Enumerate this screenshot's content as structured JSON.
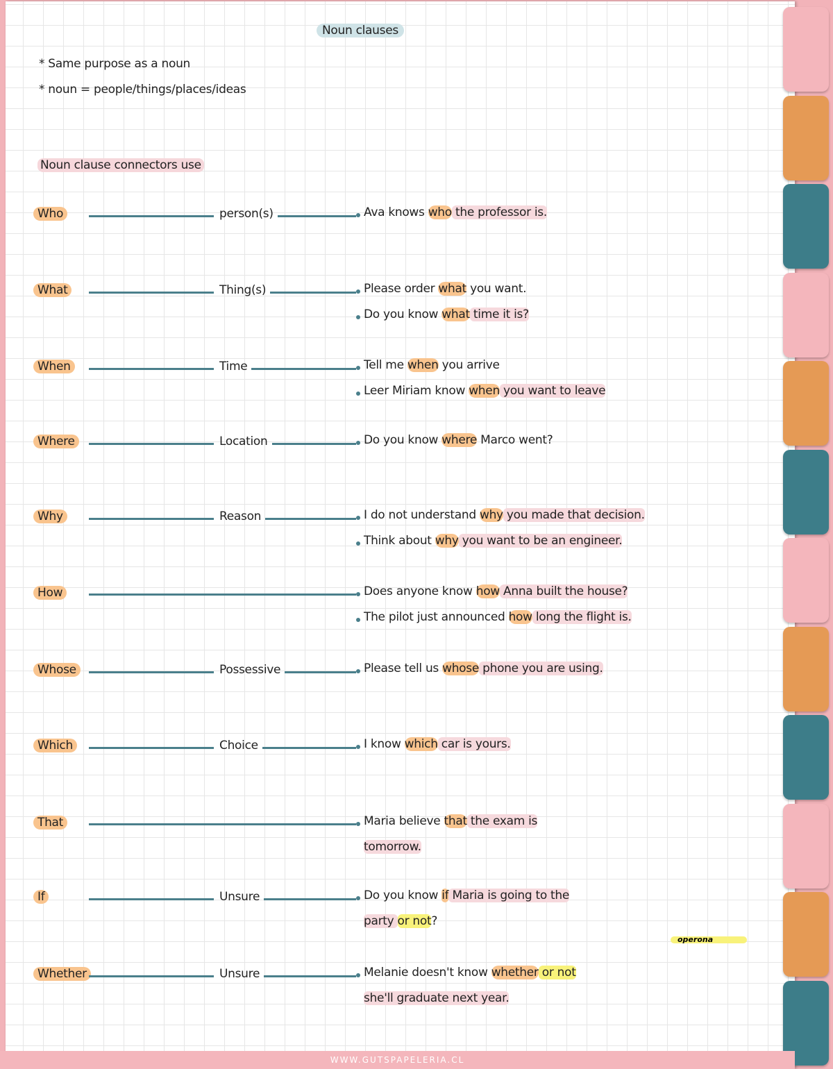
{
  "title": "Noun clauses",
  "bullets": [
    "* Same purpose as a noun",
    "* noun = people/things/places/ideas"
  ],
  "subheading": "Noun clause connectors use",
  "colors": {
    "pink": "#f4b6bc",
    "orange": "#e59a55",
    "teal": "#3d7d89",
    "line": "#4a7f8b",
    "highlight_orange": "#f9c48e",
    "highlight_pink": "#f6d9dd",
    "highlight_yellow": "#f8f27a"
  },
  "tabs": [
    "pink",
    "orange",
    "teal",
    "pink",
    "orange",
    "teal",
    "pink",
    "orange",
    "teal",
    "pink",
    "orange",
    "teal"
  ],
  "rows": [
    {
      "word": "Who",
      "meaning": "person(s)",
      "examples": [
        [
          [
            "Ava knows ",
            "n"
          ],
          [
            "who",
            "o"
          ],
          [
            " the professor is.",
            "p"
          ]
        ]
      ]
    },
    {
      "word": "What",
      "meaning": "Thing(s)",
      "examples": [
        [
          [
            "Please order ",
            "n"
          ],
          [
            "what",
            "o"
          ],
          [
            " you want.",
            "n"
          ]
        ],
        [
          [
            "Do you know ",
            "n"
          ],
          [
            "what",
            "o"
          ],
          [
            " time it is?",
            "p"
          ]
        ]
      ]
    },
    {
      "word": "When",
      "meaning": "Time",
      "examples": [
        [
          [
            "Tell me ",
            "n"
          ],
          [
            "when",
            "o"
          ],
          [
            " you arrive",
            "n"
          ]
        ],
        [
          [
            "Leer Miriam know ",
            "n"
          ],
          [
            "when",
            "o"
          ],
          [
            " you want to leave",
            "p"
          ]
        ]
      ]
    },
    {
      "word": "Where",
      "meaning": "Location",
      "examples": [
        [
          [
            "Do you know ",
            "n"
          ],
          [
            "where",
            "o"
          ],
          [
            " Marco went?",
            "n"
          ]
        ]
      ]
    },
    {
      "word": "Why",
      "meaning": "Reason",
      "examples": [
        [
          [
            "I do not understand ",
            "n"
          ],
          [
            "why",
            "o"
          ],
          [
            " you made that decision.",
            "p"
          ]
        ],
        [
          [
            "Think about ",
            "n"
          ],
          [
            "why",
            "o"
          ],
          [
            " you want to be an engineer.",
            "p"
          ]
        ]
      ]
    },
    {
      "word": "How",
      "meaning": "",
      "examples": [
        [
          [
            "Does anyone know ",
            "n"
          ],
          [
            "how",
            "o"
          ],
          [
            " Anna built the house?",
            "p"
          ]
        ],
        [
          [
            "The pilot just announced ",
            "n"
          ],
          [
            "how",
            "o"
          ],
          [
            " long the flight is.",
            "p"
          ]
        ]
      ]
    },
    {
      "word": "Whose",
      "meaning": "Possessive",
      "examples": [
        [
          [
            "Please tell us ",
            "n"
          ],
          [
            "whose",
            "o"
          ],
          [
            " phone you are using.",
            "p"
          ]
        ]
      ]
    },
    {
      "word": "Which",
      "meaning": "Choice",
      "examples": [
        [
          [
            "I know ",
            "n"
          ],
          [
            "which",
            "o"
          ],
          [
            " car is yours.",
            "p"
          ]
        ]
      ]
    },
    {
      "word": "That",
      "meaning": "",
      "examples": [
        [
          [
            "Maria believe ",
            "n"
          ],
          [
            "that",
            "o"
          ],
          [
            " the exam is",
            "p"
          ]
        ],
        [
          [
            "tomorrow.",
            "p"
          ]
        ]
      ]
    },
    {
      "word": "If",
      "meaning": "Unsure",
      "examples": [
        [
          [
            "Do you know ",
            "n"
          ],
          [
            "if",
            "o"
          ],
          [
            " Maria is going to the",
            "p"
          ]
        ],
        [
          [
            "party ",
            "p"
          ],
          [
            "or not",
            "y"
          ],
          [
            "?",
            "n"
          ]
        ]
      ]
    },
    {
      "word": "Whether",
      "meaning": "Unsure",
      "examples": [
        [
          [
            "Melanie doesn't know ",
            "n"
          ],
          [
            "whether",
            "o"
          ],
          [
            " or not",
            "y"
          ]
        ],
        [
          [
            "she'll graduate next year.",
            "p"
          ]
        ]
      ]
    }
  ],
  "signature": "operona",
  "footer": "WWW.GUTSPAPELERIA.CL"
}
